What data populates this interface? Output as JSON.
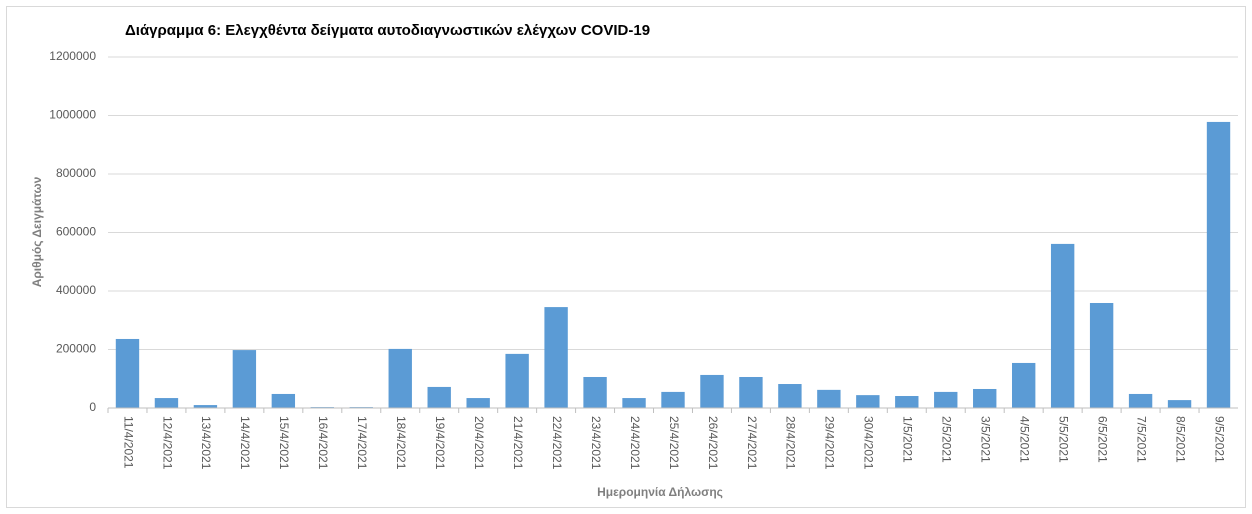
{
  "chart_data": {
    "type": "bar",
    "title": "Διάγραμμα 6: Ελεγχθέντα δείγματα αυτοδιαγνωστικών ελέγχων COVID-19",
    "x_label": "Ημερομηνία Δήλωσης",
    "y_label": "Αριθμός Δειγμάτων",
    "categories": [
      "11/4/2021",
      "12/4/2021",
      "13/4/2021",
      "14/4/2021",
      "15/4/2021",
      "16/4/2021",
      "17/4/2021",
      "18/4/2021",
      "19/4/2021",
      "20/4/2021",
      "21/4/2021",
      "22/4/2021",
      "23/4/2021",
      "24/4/2021",
      "25/4/2021",
      "26/4/2021",
      "27/4/2021",
      "28/4/2021",
      "29/4/2021",
      "30/4/2021",
      "1/5/2021",
      "2/5/2021",
      "3/5/2021",
      "4/5/2021",
      "5/5/2021",
      "6/5/2021",
      "7/5/2021",
      "8/5/2021",
      "9/5/2021"
    ],
    "values": [
      236000,
      34000,
      10000,
      198000,
      48000,
      3000,
      3000,
      202000,
      72000,
      34000,
      185000,
      345000,
      106000,
      34000,
      55000,
      113000,
      106000,
      82000,
      62000,
      44000,
      41000,
      55000,
      65000,
      154000,
      561000,
      359000,
      48000,
      27000,
      978000
    ],
    "color": "#5b9bd5",
    "ylim": [
      0,
      1200000
    ],
    "yticks": [
      0,
      200000,
      400000,
      600000,
      800000,
      1000000,
      1200000
    ],
    "grid": true
  }
}
